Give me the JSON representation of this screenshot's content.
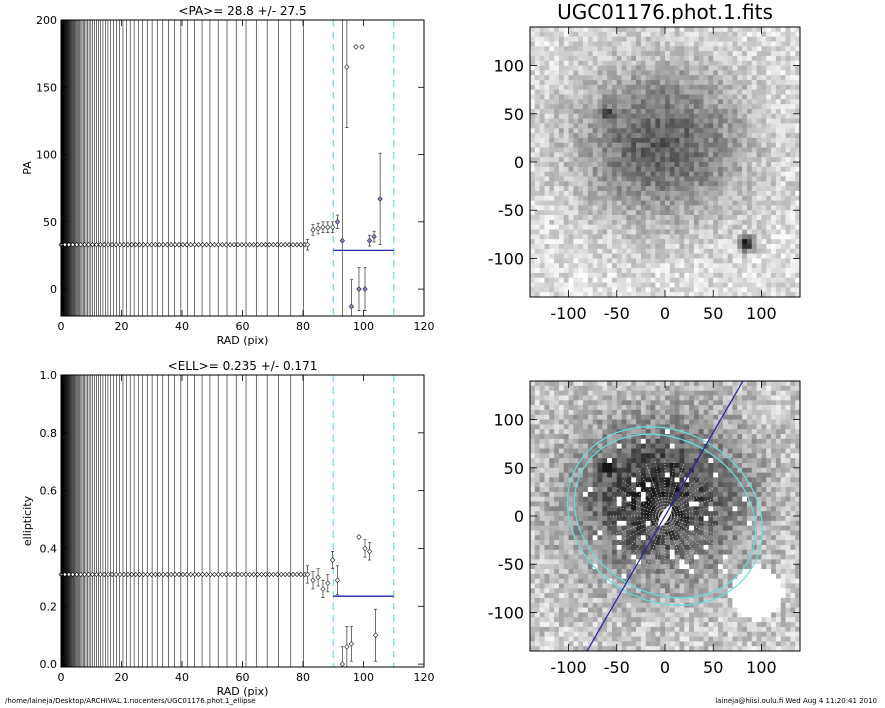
{
  "footer": {
    "path": "/home/laineja/Desktop/ARCHIVAL.1.nocenters/UGC01176.phot.1_ellipse",
    "stamp": "laineja@hiisi.oulu.fi  Wed Aug  4 11:20:41 2010"
  },
  "chart_data": [
    {
      "type": "scatter",
      "id": "pa",
      "title": "<PA>=  28.8 +/-  27.5",
      "xlabel": "RAD (pix)",
      "ylabel": "PA",
      "xlim": [
        0,
        120
      ],
      "ylim": [
        -20,
        200
      ],
      "xticks": [
        0,
        20,
        40,
        60,
        80,
        100,
        120
      ],
      "yticks": [
        0,
        50,
        100,
        150,
        200
      ],
      "vlines_cyan": [
        90,
        110
      ],
      "mean_line": {
        "x": [
          90,
          110
        ],
        "y": 28.8,
        "color": "#2222aa"
      },
      "flat_value": 33,
      "flat_x_max": 81,
      "points": [
        {
          "x": 81.5,
          "y": 33,
          "err": 4
        },
        {
          "x": 83.3,
          "y": 44,
          "err": 4
        },
        {
          "x": 85.0,
          "y": 45,
          "err": 4
        },
        {
          "x": 86.6,
          "y": 46,
          "err": 4
        },
        {
          "x": 88.2,
          "y": 46,
          "err": 4
        },
        {
          "x": 89.8,
          "y": 46,
          "err": 4
        },
        {
          "x": 91.4,
          "y": 50,
          "err": 5,
          "blue": true
        },
        {
          "x": 93.0,
          "y": 36,
          "err": 165,
          "blue": true
        },
        {
          "x": 94.5,
          "y": 165,
          "err": 45
        },
        {
          "x": 96.0,
          "y": -13,
          "err": 20,
          "blue": true
        },
        {
          "x": 97.5,
          "y": 180,
          "err": 0
        },
        {
          "x": 98.5,
          "y": 0,
          "err": 16,
          "blue": true
        },
        {
          "x": 99.5,
          "y": 180,
          "err": 0
        },
        {
          "x": 100.5,
          "y": 0,
          "err": 16,
          "blue": true
        },
        {
          "x": 102.0,
          "y": 36,
          "err": 4,
          "blue": true
        },
        {
          "x": 103.5,
          "y": 39,
          "err": 4,
          "blue": true
        },
        {
          "x": 105.5,
          "y": 67,
          "err": 34,
          "blue": true
        }
      ]
    },
    {
      "type": "scatter",
      "id": "ell",
      "title": "<ELL>= 0.235 +/-  0.171",
      "xlabel": "RAD (pix)",
      "ylabel": "ellipticity",
      "xlim": [
        0,
        120
      ],
      "ylim": [
        -0.01,
        1.0
      ],
      "xticks": [
        0,
        20,
        40,
        60,
        80,
        100,
        120
      ],
      "yticks": [
        0.0,
        0.2,
        0.4,
        0.6,
        0.8,
        1.0
      ],
      "vlines_cyan": [
        90,
        110
      ],
      "mean_line": {
        "x": [
          90,
          110
        ],
        "y": 0.235,
        "color": "#2222aa"
      },
      "flat_value": 0.31,
      "flat_x_max": 81,
      "points": [
        {
          "x": 81.5,
          "y": 0.31,
          "err": 0.03
        },
        {
          "x": 83.3,
          "y": 0.29,
          "err": 0.03
        },
        {
          "x": 85.0,
          "y": 0.3,
          "err": 0.03
        },
        {
          "x": 86.6,
          "y": 0.26,
          "err": 0.03
        },
        {
          "x": 88.2,
          "y": 0.28,
          "err": 0.03
        },
        {
          "x": 89.8,
          "y": 0.36,
          "err": 0.03
        },
        {
          "x": 91.4,
          "y": 0.29,
          "err": 0.05
        },
        {
          "x": 93.0,
          "y": 0.0,
          "err": 0.06
        },
        {
          "x": 94.5,
          "y": 0.06,
          "err": 0.07
        },
        {
          "x": 96.0,
          "y": 0.07,
          "err": 0.06
        },
        {
          "x": 98.5,
          "y": 0.44,
          "err": 0.0
        },
        {
          "x": 100.5,
          "y": 0.4,
          "err": 0.03
        },
        {
          "x": 102.0,
          "y": 0.39,
          "err": 0.03
        },
        {
          "x": 104.0,
          "y": 0.1,
          "err": 0.09
        }
      ]
    },
    {
      "type": "heatmap",
      "id": "img1",
      "title": "UGC01176.phot.1.fits",
      "xlim": [
        -140,
        140
      ],
      "ylim": [
        -140,
        140
      ],
      "xticks": [
        -100,
        -50,
        0,
        50,
        100
      ],
      "yticks": [
        -100,
        -50,
        0,
        50,
        100
      ]
    },
    {
      "type": "heatmap",
      "id": "img2",
      "title": "",
      "xlim": [
        -140,
        140
      ],
      "ylim": [
        -140,
        140
      ],
      "xticks": [
        -100,
        -50,
        0,
        50,
        100
      ],
      "yticks": [
        -100,
        -50,
        0,
        50,
        100
      ],
      "overlay": {
        "ellipses": [
          {
            "a": 105,
            "b": 88,
            "angle_deg": 60
          },
          {
            "a": 98,
            "b": 80,
            "angle_deg": 60
          }
        ],
        "pa_line_color": "#2222aa",
        "ellipse_color": "#66dddd"
      }
    }
  ]
}
